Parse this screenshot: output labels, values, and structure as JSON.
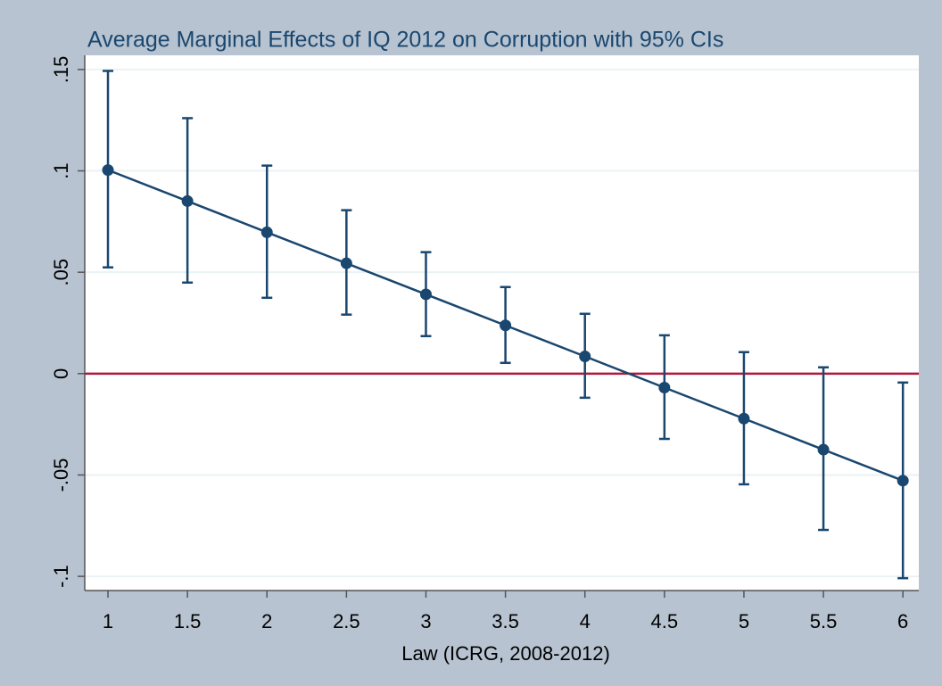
{
  "chart_data": {
    "type": "line",
    "title": "Average Marginal Effects of IQ 2012 on Corruption with 95% CIs",
    "xlabel": "Law (ICRG, 2008-2012)",
    "x": [
      1,
      1.5,
      2,
      2.5,
      3,
      3.5,
      4,
      4.5,
      5,
      5.5,
      6
    ],
    "values": [
      0.1004,
      0.0851,
      0.0697,
      0.0544,
      0.0391,
      0.0238,
      0.0085,
      -0.0069,
      -0.0222,
      -0.0375,
      -0.0528
    ],
    "lower": [
      0.0524,
      0.0449,
      0.0374,
      0.0291,
      0.0185,
      0.0053,
      -0.0119,
      -0.0322,
      -0.0546,
      -0.0771,
      -0.1009
    ],
    "upper": [
      0.1493,
      0.126,
      0.1026,
      0.0806,
      0.0599,
      0.0427,
      0.0295,
      0.0189,
      0.0106,
      0.0031,
      -0.0044
    ],
    "color": "#1a476f",
    "refline": {
      "value": 0,
      "color": "#b2173c"
    },
    "xlim": [
      0.854,
      6.1
    ],
    "ylim": [
      -0.107,
      0.157
    ],
    "xticks": [
      1,
      1.5,
      2,
      2.5,
      3,
      3.5,
      4,
      4.5,
      5,
      5.5,
      6
    ],
    "yticks": [
      {
        "value": -0.1,
        "label": "-.1"
      },
      {
        "value": -0.05,
        "label": "-.05"
      },
      0,
      {
        "value": 0.05,
        "label": ".05"
      },
      {
        "value": 0.1,
        "label": ".1"
      },
      {
        "value": 0.15,
        "label": ".15"
      }
    ],
    "grid": true
  }
}
